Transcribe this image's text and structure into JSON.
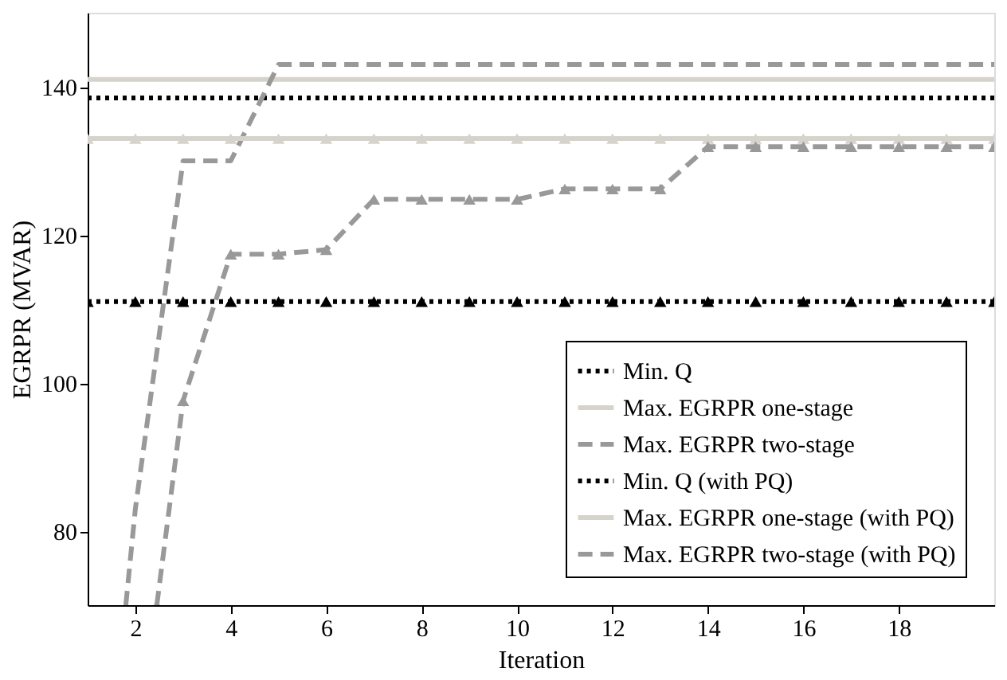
{
  "chart_data": {
    "type": "line",
    "xlabel": "Iteration",
    "ylabel": "EGRPR (MVAR)",
    "xlim": [
      1,
      20
    ],
    "ylim": [
      70,
      150
    ],
    "xticks": [
      2,
      4,
      6,
      8,
      10,
      12,
      14,
      16,
      18
    ],
    "yticks": [
      80,
      100,
      120,
      140
    ],
    "grid": false,
    "legend": "bottom right",
    "series": [
      {
        "name": "Min. Q",
        "color": "#000000",
        "line_style": "dotted",
        "marker": "none",
        "x": [
          1,
          20
        ],
        "values": [
          138.5,
          138.5
        ]
      },
      {
        "name": "Max. EGRPR one-stage",
        "color": "#d6d3cc",
        "line_style": "solid",
        "marker": "none",
        "x": [
          1,
          20
        ],
        "values": [
          141,
          141
        ]
      },
      {
        "name": "Max. EGRPR two-stage",
        "color": "#999999",
        "line_style": "dashed",
        "marker": "none",
        "x": [
          1.8,
          2,
          3,
          4,
          5,
          20
        ],
        "values": [
          70,
          83,
          130,
          130,
          143,
          143
        ]
      },
      {
        "name": "Min. Q (with PQ)",
        "color": "#000000",
        "line_style": "dotted",
        "marker": "triangle",
        "x": [
          1,
          2,
          3,
          4,
          5,
          6,
          7,
          8,
          9,
          10,
          11,
          12,
          13,
          14,
          15,
          16,
          17,
          18,
          19,
          20
        ],
        "values": [
          111,
          111,
          111,
          111,
          111,
          111,
          111,
          111,
          111,
          111,
          111,
          111,
          111,
          111,
          111,
          111,
          111,
          111,
          111,
          111
        ]
      },
      {
        "name": "Max. EGRPR one-stage (with PQ)",
        "color": "#d6d3cc",
        "line_style": "solid",
        "marker": "triangle",
        "x": [
          1,
          2,
          3,
          4,
          5,
          6,
          7,
          8,
          9,
          10,
          11,
          12,
          13,
          14,
          15,
          16,
          17,
          18,
          19,
          20
        ],
        "values": [
          133,
          133,
          133,
          133,
          133,
          133,
          133,
          133,
          133,
          133,
          133,
          133,
          133,
          133,
          133,
          133,
          133,
          133,
          133,
          133
        ]
      },
      {
        "name": "Max. EGRPR two-stage (with PQ)",
        "color": "#999999",
        "line_style": "dashed",
        "marker": "triangle",
        "x": [
          2.45,
          3,
          4,
          5,
          6,
          7,
          8,
          9,
          10,
          11,
          12,
          13,
          14,
          15,
          16,
          17,
          18,
          19,
          20
        ],
        "values": [
          70,
          97.6,
          117.4,
          117.4,
          118,
          124.8,
          124.8,
          124.8,
          124.8,
          126.2,
          126.2,
          126.2,
          131.9,
          131.9,
          131.9,
          131.9,
          131.9,
          131.9,
          131.9
        ]
      }
    ]
  }
}
